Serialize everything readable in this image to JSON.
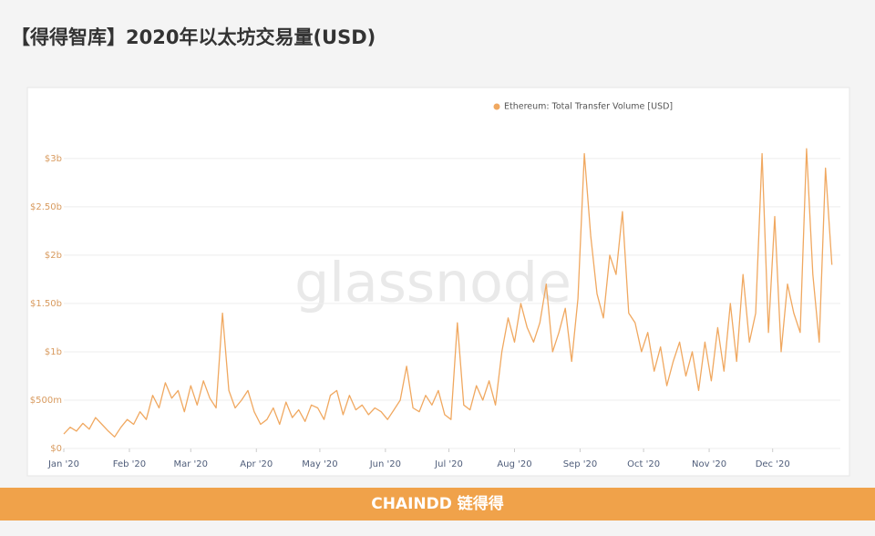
{
  "chart_data": {
    "type": "line",
    "title": "【得得智库】2020年以太坊交易量(USD)",
    "watermark": "glassnode",
    "footer": "CHAINDD 链得得",
    "x": [
      1,
      4,
      7,
      10,
      13,
      16,
      19,
      22,
      25,
      28,
      31,
      34,
      37,
      40,
      43,
      46,
      49,
      52,
      55,
      58,
      61,
      64,
      67,
      70,
      73,
      76,
      79,
      82,
      85,
      88,
      91,
      94,
      97,
      100,
      103,
      106,
      109,
      112,
      115,
      118,
      121,
      124,
      127,
      130,
      133,
      136,
      139,
      142,
      145,
      148,
      151,
      154,
      157,
      160,
      163,
      166,
      169,
      172,
      175,
      178,
      181,
      184,
      187,
      190,
      193,
      196,
      199,
      202,
      205,
      208,
      211,
      214,
      217,
      220,
      223,
      226,
      229,
      232,
      235,
      238,
      241,
      244,
      247,
      250,
      253,
      256,
      259,
      262,
      265,
      268,
      271,
      274,
      277,
      280,
      283,
      286,
      289,
      292,
      295,
      298,
      301,
      304,
      307,
      310,
      313,
      316,
      319,
      322,
      325,
      328,
      331,
      334,
      337,
      340,
      343,
      346,
      349,
      352,
      355,
      358,
      361,
      364
    ],
    "series": [
      {
        "name": "Ethereum: Total Transfer Volume [USD]",
        "color": "#f0a860",
        "values": [
          150000000,
          220000000,
          180000000,
          260000000,
          200000000,
          320000000,
          250000000,
          180000000,
          120000000,
          220000000,
          300000000,
          250000000,
          380000000,
          300000000,
          550000000,
          420000000,
          680000000,
          520000000,
          600000000,
          380000000,
          650000000,
          450000000,
          700000000,
          520000000,
          420000000,
          1400000000,
          600000000,
          420000000,
          500000000,
          600000000,
          380000000,
          250000000,
          300000000,
          420000000,
          250000000,
          480000000,
          320000000,
          400000000,
          280000000,
          450000000,
          420000000,
          300000000,
          550000000,
          600000000,
          350000000,
          550000000,
          400000000,
          450000000,
          350000000,
          420000000,
          380000000,
          300000000,
          400000000,
          500000000,
          850000000,
          420000000,
          380000000,
          550000000,
          450000000,
          600000000,
          350000000,
          300000000,
          1300000000,
          450000000,
          400000000,
          650000000,
          500000000,
          700000000,
          450000000,
          1000000000,
          1350000000,
          1100000000,
          1500000000,
          1250000000,
          1100000000,
          1300000000,
          1700000000,
          1000000000,
          1200000000,
          1450000000,
          900000000,
          1550000000,
          3050000000,
          2200000000,
          1600000000,
          1350000000,
          2000000000,
          1800000000,
          2450000000,
          1400000000,
          1300000000,
          1000000000,
          1200000000,
          800000000,
          1050000000,
          650000000,
          900000000,
          1100000000,
          750000000,
          1000000000,
          600000000,
          1100000000,
          700000000,
          1250000000,
          800000000,
          1500000000,
          900000000,
          1800000000,
          1100000000,
          1400000000,
          3050000000,
          1200000000,
          2400000000,
          1000000000,
          1700000000,
          1400000000,
          1200000000,
          3100000000,
          1800000000,
          1100000000,
          2900000000,
          1900000000
        ]
      }
    ],
    "xlim": [
      1,
      368
    ],
    "xticks": [
      {
        "value": 1,
        "label": "Jan '20"
      },
      {
        "value": 32,
        "label": "Feb '20"
      },
      {
        "value": 61,
        "label": "Mar '20"
      },
      {
        "value": 92,
        "label": "Apr '20"
      },
      {
        "value": 122,
        "label": "May '20"
      },
      {
        "value": 153,
        "label": "Jun '20"
      },
      {
        "value": 183,
        "label": "Jul '20"
      },
      {
        "value": 214,
        "label": "Aug '20"
      },
      {
        "value": 245,
        "label": "Sep '20"
      },
      {
        "value": 275,
        "label": "Oct '20"
      },
      {
        "value": 306,
        "label": "Nov '20"
      },
      {
        "value": 336,
        "label": "Dec '20"
      }
    ],
    "ylim": [
      0,
      3300000000
    ],
    "yticks": [
      {
        "value": 0,
        "label": "$0"
      },
      {
        "value": 500000000,
        "label": "$500m"
      },
      {
        "value": 1000000000,
        "label": "$1b"
      },
      {
        "value": 1500000000,
        "label": "$1.50b"
      },
      {
        "value": 2000000000,
        "label": "$2b"
      },
      {
        "value": 2500000000,
        "label": "$2.50b"
      },
      {
        "value": 3000000000,
        "label": "$3b"
      }
    ],
    "grid": true
  }
}
